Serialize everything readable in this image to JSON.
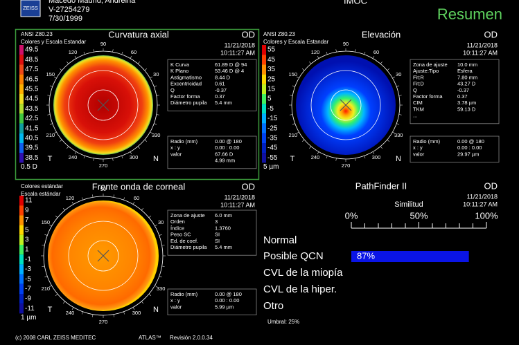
{
  "header": {
    "logo": "ZEISS",
    "patient_name": "Macedo Madrid, Andreina",
    "patient_id": "V-27254279",
    "birth_date": "7/30/1999",
    "module": "IMOC",
    "view": "Resumen"
  },
  "panels": [
    {
      "standard": "ANSI Z80.23",
      "scale_type": "Colores y Escala Estandar",
      "title": "Curvatura axial",
      "eye": "OD",
      "date": "11/21/2018",
      "time": "10:11:27 AM",
      "scale": [
        49.5,
        48.5,
        47.5,
        46.5,
        45.5,
        44.5,
        43.5,
        42.5,
        41.5,
        40.5,
        39.5,
        38.5
      ],
      "step": "0.5 D",
      "angles": [
        90,
        60,
        30,
        330,
        300,
        270,
        240,
        210,
        150,
        120
      ],
      "temporal": "T",
      "nasal": "N",
      "info": [
        [
          "K Curva",
          "61.89 D @ 94"
        ],
        [
          "K Plano",
          "53.46 D @ 4"
        ],
        [
          "Astigmatismo",
          "8.44 D"
        ],
        [
          "Excentricidad",
          "0.61"
        ],
        [
          "Q",
          "-0.37"
        ],
        [
          "Factor forma",
          "0.37"
        ],
        [
          "Diámetro pupila",
          "5.4 mm"
        ]
      ],
      "cursor": [
        [
          "Radio (mm)",
          "0.00 @ 180"
        ],
        [
          "x : y",
          "0.00 : 0.00"
        ],
        [
          "valor",
          "67.66 D"
        ]
      ],
      "cursor_extra": "4.99 mm"
    },
    {
      "standard": "ANSI Z80.23",
      "scale_type": "Colores y Escala Estandar",
      "title": "Elevación",
      "eye": "OD",
      "date": "11/21/2018",
      "time": "10:11:27 AM",
      "scale": [
        55,
        45,
        35,
        25,
        15,
        5,
        -5,
        -15,
        -25,
        -35,
        -45,
        -55
      ],
      "step": "5 µm",
      "angles": [
        90,
        60,
        30,
        330,
        300,
        270,
        240,
        210,
        150,
        120
      ],
      "temporal": "T",
      "nasal": "N",
      "info": [
        [
          "Zona de ajuste",
          "10.0 mm"
        ],
        [
          "Ajuste:Tipo",
          "Esfera"
        ],
        [
          "Fit:R",
          "7.80 mm"
        ],
        [
          "Fit:D",
          "43.27 D"
        ],
        [
          "Q",
          "-0.37"
        ],
        [
          "Factor forma",
          "0.37"
        ],
        [
          "CIM",
          "3.78 µm"
        ],
        [
          "TKM",
          "59.13 D"
        ],
        [
          "..."
        ]
      ],
      "cursor": [
        [
          "Radio (mm)",
          "0.00 @ 180"
        ],
        [
          "x : y",
          "0.00 : 0.00"
        ],
        [
          "valor",
          "29.97 µm"
        ]
      ]
    },
    {
      "standard": "Colores estándar",
      "scale_type": "Escala estándar",
      "title": "Frente onda de corneal",
      "eye": "OD",
      "date": "11/21/2018",
      "time": "10:11:27 AM",
      "scale": [
        11,
        9,
        7,
        5,
        3,
        1,
        -1,
        -3,
        -5,
        -7,
        -9,
        -11
      ],
      "step": "1 µm",
      "angles": [
        90,
        60,
        30,
        330,
        300,
        270,
        240,
        210,
        150,
        120
      ],
      "temporal": "T",
      "nasal": "N",
      "info": [
        [
          "Zona de ajuste",
          "6.0 mm"
        ],
        [
          "Orden",
          "3"
        ],
        [
          "Índice",
          "1.3760"
        ],
        [
          "Peso SC",
          "SI"
        ],
        [
          "Ed. de coef.",
          "SI"
        ],
        [
          "Diámetro pupila",
          "5.4 mm"
        ]
      ],
      "cursor": [
        [
          "Radio (mm)",
          "0.00 @ 180"
        ],
        [
          "x : y",
          "0.00 : 0.00"
        ],
        [
          "valor",
          "5.99 µm"
        ]
      ]
    }
  ],
  "pathfinder": {
    "title": "PathFinder II",
    "eye": "OD",
    "date": "11/21/2018",
    "time": "10:11:27 AM",
    "axis_label": "Similitud",
    "xlim": [
      0,
      100
    ],
    "xticks": [
      {
        "value": 0,
        "label": "0%"
      },
      {
        "value": 50,
        "label": "50%"
      },
      {
        "value": 100,
        "label": "100%"
      }
    ],
    "minor_xticks": [
      10,
      20,
      30,
      40,
      60,
      70,
      80,
      90
    ],
    "categories": [
      "Normal",
      "Posible QCN",
      "CVL de la miopía",
      "CVL de la hiper.",
      "Otro"
    ],
    "values": [
      0,
      87,
      0,
      0,
      0
    ],
    "value_labels": [
      null,
      "87%",
      null,
      null,
      null
    ],
    "color": "#0a14e6",
    "threshold": "Umbral: 25%"
  },
  "footer": {
    "copyright": "(c) 2008 CARL ZEISS MEDITEC",
    "product": "ATLAS™",
    "revision": "Revisión 2.0.0.34"
  }
}
